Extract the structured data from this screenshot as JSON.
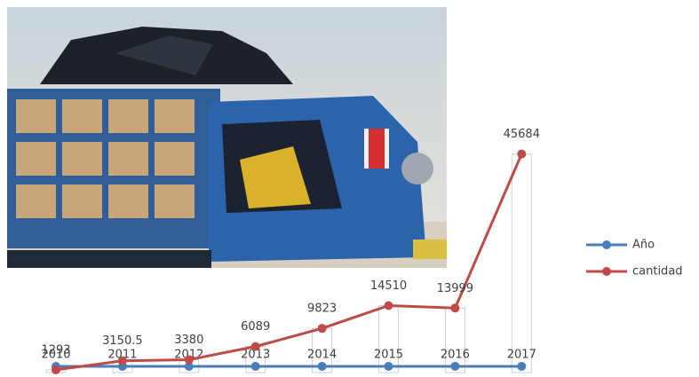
{
  "chart_data": {
    "type": "line",
    "categories": [
      null,
      null,
      null,
      null,
      null,
      null,
      null,
      null
    ],
    "series": [
      {
        "name": "Año",
        "color": "#4a7ebb",
        "values": [
          2010,
          2011,
          2012,
          2013,
          2014,
          2015,
          2016,
          2017
        ]
      },
      {
        "name": "cantidad",
        "color": "#be4b48",
        "values": [
          1293,
          3150.5,
          3380,
          6089,
          9823,
          14510,
          13999,
          45684
        ]
      }
    ],
    "ylim": [
      0,
      50000
    ],
    "legend": "right"
  }
}
